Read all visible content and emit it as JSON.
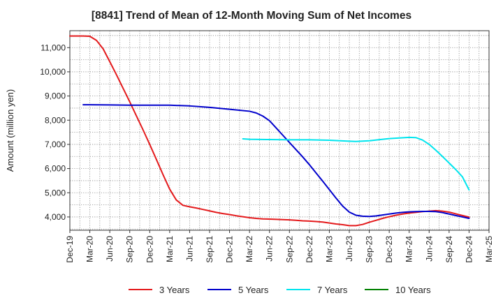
{
  "chart_data": {
    "type": "line",
    "title": "[8841]  Trend of Mean of 12-Month Moving Sum of Net Incomes",
    "xlabel": "",
    "ylabel": "Amount (million yen)",
    "x_ticks": [
      "Dec-19",
      "Mar-20",
      "Jun-20",
      "Sep-20",
      "Dec-20",
      "Mar-21",
      "Jun-21",
      "Sep-21",
      "Dec-21",
      "Mar-22",
      "Jun-22",
      "Sep-22",
      "Dec-22",
      "Mar-23",
      "Jun-23",
      "Sep-23",
      "Dec-23",
      "Mar-24",
      "Jun-24",
      "Sep-24",
      "Dec-24",
      "Mar-25"
    ],
    "y_ticks": [
      4000,
      5000,
      6000,
      7000,
      8000,
      9000,
      10000,
      11000
    ],
    "y_tick_labels": [
      "4,000",
      "5,000",
      "6,000",
      "7,000",
      "8,000",
      "9,000",
      "10,000",
      "11,000"
    ],
    "ylim": [
      3450,
      11700
    ],
    "grid": true,
    "legend_position": "bottom",
    "series": [
      {
        "name": "3 Years",
        "color": "#e41a1c",
        "points": [
          [
            "Dec-19",
            11480
          ],
          [
            "Jan-20",
            11480
          ],
          [
            "Feb-20",
            11480
          ],
          [
            "Mar-20",
            11470
          ],
          [
            "Apr-20",
            11300
          ],
          [
            "May-20",
            10950
          ],
          [
            "Jun-20",
            10420
          ],
          [
            "Jul-20",
            9880
          ],
          [
            "Aug-20",
            9320
          ],
          [
            "Sep-20",
            8760
          ],
          [
            "Oct-20",
            8180
          ],
          [
            "Nov-20",
            7600
          ],
          [
            "Dec-20",
            7000
          ],
          [
            "Jan-21",
            6380
          ],
          [
            "Feb-21",
            5750
          ],
          [
            "Mar-21",
            5150
          ],
          [
            "Apr-21",
            4700
          ],
          [
            "May-21",
            4480
          ],
          [
            "Jun-21",
            4420
          ],
          [
            "Jul-21",
            4370
          ],
          [
            "Aug-21",
            4310
          ],
          [
            "Sep-21",
            4250
          ],
          [
            "Oct-21",
            4190
          ],
          [
            "Nov-21",
            4140
          ],
          [
            "Dec-21",
            4100
          ],
          [
            "Jan-22",
            4050
          ],
          [
            "Feb-22",
            4010
          ],
          [
            "Mar-22",
            3970
          ],
          [
            "Apr-22",
            3940
          ],
          [
            "May-22",
            3920
          ],
          [
            "Jun-22",
            3910
          ],
          [
            "Jul-22",
            3900
          ],
          [
            "Aug-22",
            3890
          ],
          [
            "Sep-22",
            3880
          ],
          [
            "Oct-22",
            3860
          ],
          [
            "Nov-22",
            3840
          ],
          [
            "Dec-22",
            3830
          ],
          [
            "Jan-23",
            3810
          ],
          [
            "Feb-23",
            3790
          ],
          [
            "Mar-23",
            3750
          ],
          [
            "Apr-23",
            3710
          ],
          [
            "May-23",
            3680
          ],
          [
            "Jun-23",
            3640
          ],
          [
            "Jul-23",
            3640
          ],
          [
            "Aug-23",
            3690
          ],
          [
            "Sep-23",
            3780
          ],
          [
            "Oct-23",
            3860
          ],
          [
            "Nov-23",
            3940
          ],
          [
            "Dec-23",
            4010
          ],
          [
            "Jan-24",
            4070
          ],
          [
            "Feb-24",
            4120
          ],
          [
            "Mar-24",
            4160
          ],
          [
            "Apr-24",
            4190
          ],
          [
            "May-24",
            4220
          ],
          [
            "Jun-24",
            4240
          ],
          [
            "Jul-24",
            4260
          ],
          [
            "Aug-24",
            4240
          ],
          [
            "Sep-24",
            4200
          ],
          [
            "Oct-24",
            4130
          ],
          [
            "Nov-24",
            4060
          ],
          [
            "Dec-24",
            3990
          ]
        ]
      },
      {
        "name": "5 Years",
        "color": "#0000cc",
        "points": [
          [
            "Feb-20",
            8640
          ],
          [
            "Jun-20",
            8630
          ],
          [
            "Sep-20",
            8620
          ],
          [
            "Dec-20",
            8620
          ],
          [
            "Mar-21",
            8620
          ],
          [
            "Jun-21",
            8590
          ],
          [
            "Sep-21",
            8530
          ],
          [
            "Dec-21",
            8450
          ],
          [
            "Mar-22",
            8370
          ],
          [
            "Apr-22",
            8300
          ],
          [
            "May-22",
            8170
          ],
          [
            "Jun-22",
            7980
          ],
          [
            "Jul-22",
            7680
          ],
          [
            "Aug-22",
            7380
          ],
          [
            "Sep-22",
            7080
          ],
          [
            "Oct-22",
            6780
          ],
          [
            "Nov-22",
            6480
          ],
          [
            "Dec-22",
            6160
          ],
          [
            "Jan-23",
            5820
          ],
          [
            "Feb-23",
            5480
          ],
          [
            "Mar-23",
            5130
          ],
          [
            "Apr-23",
            4780
          ],
          [
            "May-23",
            4450
          ],
          [
            "Jun-23",
            4200
          ],
          [
            "Jul-23",
            4070
          ],
          [
            "Aug-23",
            4030
          ],
          [
            "Sep-23",
            4020
          ],
          [
            "Oct-23",
            4040
          ],
          [
            "Nov-23",
            4080
          ],
          [
            "Dec-23",
            4120
          ],
          [
            "Jan-24",
            4160
          ],
          [
            "Feb-24",
            4190
          ],
          [
            "Mar-24",
            4210
          ],
          [
            "Apr-24",
            4220
          ],
          [
            "May-24",
            4230
          ],
          [
            "Jun-24",
            4230
          ],
          [
            "Jul-24",
            4220
          ],
          [
            "Aug-24",
            4180
          ],
          [
            "Sep-24",
            4120
          ],
          [
            "Oct-24",
            4060
          ],
          [
            "Nov-24",
            4000
          ],
          [
            "Dec-24",
            3940
          ]
        ]
      },
      {
        "name": "7 Years",
        "color": "#00e5ee",
        "points": [
          [
            "Feb-22",
            7230
          ],
          [
            "Mar-22",
            7210
          ],
          [
            "Jun-22",
            7200
          ],
          [
            "Sep-22",
            7190
          ],
          [
            "Dec-22",
            7190
          ],
          [
            "Mar-23",
            7170
          ],
          [
            "Jun-23",
            7130
          ],
          [
            "Jul-23",
            7120
          ],
          [
            "Sep-23",
            7150
          ],
          [
            "Dec-23",
            7240
          ],
          [
            "Mar-24",
            7290
          ],
          [
            "Apr-24",
            7280
          ],
          [
            "May-24",
            7180
          ],
          [
            "Jun-24",
            7000
          ],
          [
            "Jul-24",
            6760
          ],
          [
            "Aug-24",
            6500
          ],
          [
            "Sep-24",
            6230
          ],
          [
            "Oct-24",
            5960
          ],
          [
            "Nov-24",
            5660
          ],
          [
            "Dec-24",
            5120
          ]
        ]
      },
      {
        "name": "10 Years",
        "color": "#008000",
        "points": []
      }
    ]
  }
}
